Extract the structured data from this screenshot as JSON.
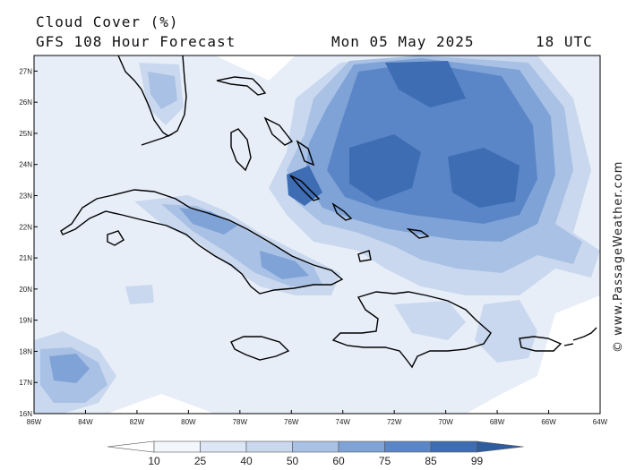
{
  "header": {
    "title": "Cloud Cover (%)",
    "model_line": "GFS 108 Hour Forecast",
    "date": "Mon 05 May 2025",
    "time": "18 UTC"
  },
  "map": {
    "lon_range": [
      -86,
      -64
    ],
    "lat_range": [
      16,
      27.5
    ],
    "lat_ticks": [
      "16N",
      "17N",
      "18N",
      "19N",
      "20N",
      "21N",
      "22N",
      "23N",
      "24N",
      "25N",
      "26N",
      "27N"
    ],
    "lon_ticks": [
      "86W",
      "84W",
      "82W",
      "80W",
      "78W",
      "76W",
      "74W",
      "72W",
      "70W",
      "68W",
      "66W",
      "64W"
    ],
    "land_outline_color": "#000000",
    "colors": {
      "c25": "#e7eef8",
      "c40": "#c9d8ee",
      "c50": "#a9c1e5",
      "c60": "#7fa3d7",
      "c75": "#5a86c8",
      "c85": "#3e6db4"
    }
  },
  "colorbar": {
    "labels": [
      "10",
      "25",
      "40",
      "50",
      "60",
      "75",
      "85",
      "99"
    ],
    "colors": [
      "#ffffff",
      "#f3f6fb",
      "#dde6f4",
      "#c9d8ee",
      "#a9c1e5",
      "#7fa3d7",
      "#5a86c8",
      "#3e6db4",
      "#2e5c9f"
    ]
  },
  "credit": "© www.PassageWeather.com"
}
